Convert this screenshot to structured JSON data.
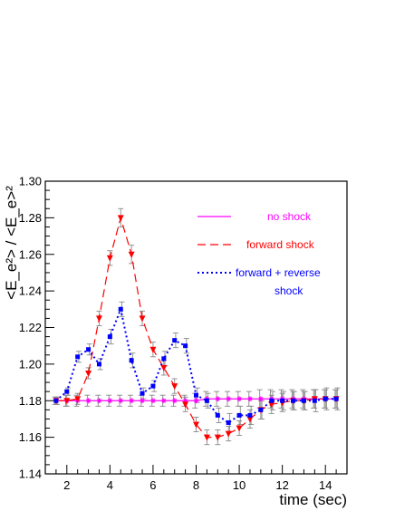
{
  "chart_data": {
    "type": "scatter",
    "title": "",
    "xlabel": "time (sec)",
    "ylabel": "<E_e²> / <E_e>²",
    "xlim": [
      1,
      15
    ],
    "ylim": [
      1.14,
      1.3
    ],
    "x_ticks": [
      2,
      4,
      6,
      8,
      10,
      12,
      14
    ],
    "y_ticks": [
      1.14,
      1.16,
      1.18,
      1.2,
      1.22,
      1.24,
      1.26,
      1.28,
      1.3
    ],
    "x_tick_labels": [
      "2",
      "4",
      "6",
      "8",
      "10",
      "12",
      "14"
    ],
    "y_tick_labels": [
      "1.14",
      "1.16",
      "1.18",
      "1.20",
      "1.22",
      "1.24",
      "1.26",
      "1.28",
      "1.30"
    ],
    "grid": false,
    "legend_position": "top-right",
    "series": [
      {
        "name": "no shock",
        "color": "#ff00ff",
        "line": "solid",
        "marker": "star",
        "x": [
          1.5,
          2.0,
          2.5,
          3.0,
          3.5,
          4.0,
          4.5,
          5.0,
          5.5,
          6.0,
          6.5,
          7.0,
          7.5,
          8.0,
          8.5,
          9.0,
          9.5,
          10.0,
          10.5,
          11.0,
          11.5,
          12.0,
          12.5,
          13.0,
          13.5,
          14.0,
          14.5
        ],
        "y": [
          1.18,
          1.18,
          1.18,
          1.18,
          1.18,
          1.18,
          1.18,
          1.18,
          1.18,
          1.18,
          1.18,
          1.18,
          1.18,
          1.18,
          1.181,
          1.181,
          1.181,
          1.181,
          1.181,
          1.181,
          1.181,
          1.181,
          1.181,
          1.181,
          1.181,
          1.181,
          1.181
        ],
        "err": [
          0.002,
          0.003,
          0.003,
          0.003,
          0.003,
          0.003,
          0.003,
          0.003,
          0.003,
          0.003,
          0.003,
          0.003,
          0.003,
          0.004,
          0.004,
          0.004,
          0.004,
          0.004,
          0.004,
          0.005,
          0.005,
          0.005,
          0.005,
          0.005,
          0.005,
          0.005,
          0.005
        ]
      },
      {
        "name": "forward shock",
        "color": "#ff0000",
        "line": "dashed",
        "marker": "triangle-down",
        "x": [
          1.5,
          2.0,
          2.5,
          3.0,
          3.5,
          4.0,
          4.5,
          5.0,
          5.5,
          6.0,
          6.5,
          7.0,
          7.5,
          8.0,
          8.5,
          9.0,
          9.5,
          10.0,
          10.5,
          11.0,
          11.5,
          12.0,
          12.5,
          13.0,
          13.5,
          14.0,
          14.5
        ],
        "y": [
          1.18,
          1.18,
          1.181,
          1.195,
          1.225,
          1.258,
          1.28,
          1.26,
          1.225,
          1.208,
          1.198,
          1.188,
          1.178,
          1.167,
          1.16,
          1.16,
          1.162,
          1.165,
          1.17,
          1.175,
          1.178,
          1.179,
          1.18,
          1.18,
          1.181,
          1.181,
          1.181
        ],
        "err": [
          0.002,
          0.003,
          0.003,
          0.003,
          0.004,
          0.004,
          0.005,
          0.005,
          0.004,
          0.004,
          0.004,
          0.004,
          0.004,
          0.004,
          0.004,
          0.004,
          0.004,
          0.004,
          0.005,
          0.005,
          0.005,
          0.005,
          0.005,
          0.005,
          0.005,
          0.005,
          0.005
        ]
      },
      {
        "name": "forward + reverse shock",
        "legend_lines": [
          "forward + reverse",
          "shock"
        ],
        "color": "#0000ff",
        "line": "dotted",
        "marker": "square",
        "x": [
          1.5,
          2.0,
          2.5,
          3.0,
          3.5,
          4.0,
          4.5,
          5.0,
          5.5,
          6.0,
          6.5,
          7.0,
          7.5,
          8.0,
          8.5,
          9.0,
          9.5,
          10.0,
          10.5,
          11.0,
          11.5,
          12.0,
          12.5,
          13.0,
          13.5,
          14.0,
          14.5
        ],
        "y": [
          1.18,
          1.185,
          1.204,
          1.208,
          1.2,
          1.215,
          1.23,
          1.202,
          1.184,
          1.188,
          1.203,
          1.213,
          1.21,
          1.183,
          1.18,
          1.172,
          1.168,
          1.172,
          1.172,
          1.175,
          1.18,
          1.18,
          1.18,
          1.18,
          1.18,
          1.181,
          1.181
        ],
        "err": [
          0.002,
          0.002,
          0.003,
          0.003,
          0.003,
          0.004,
          0.004,
          0.004,
          0.003,
          0.003,
          0.004,
          0.004,
          0.004,
          0.004,
          0.004,
          0.004,
          0.005,
          0.005,
          0.005,
          0.005,
          0.005,
          0.005,
          0.005,
          0.005,
          0.006,
          0.006,
          0.006
        ]
      }
    ]
  }
}
